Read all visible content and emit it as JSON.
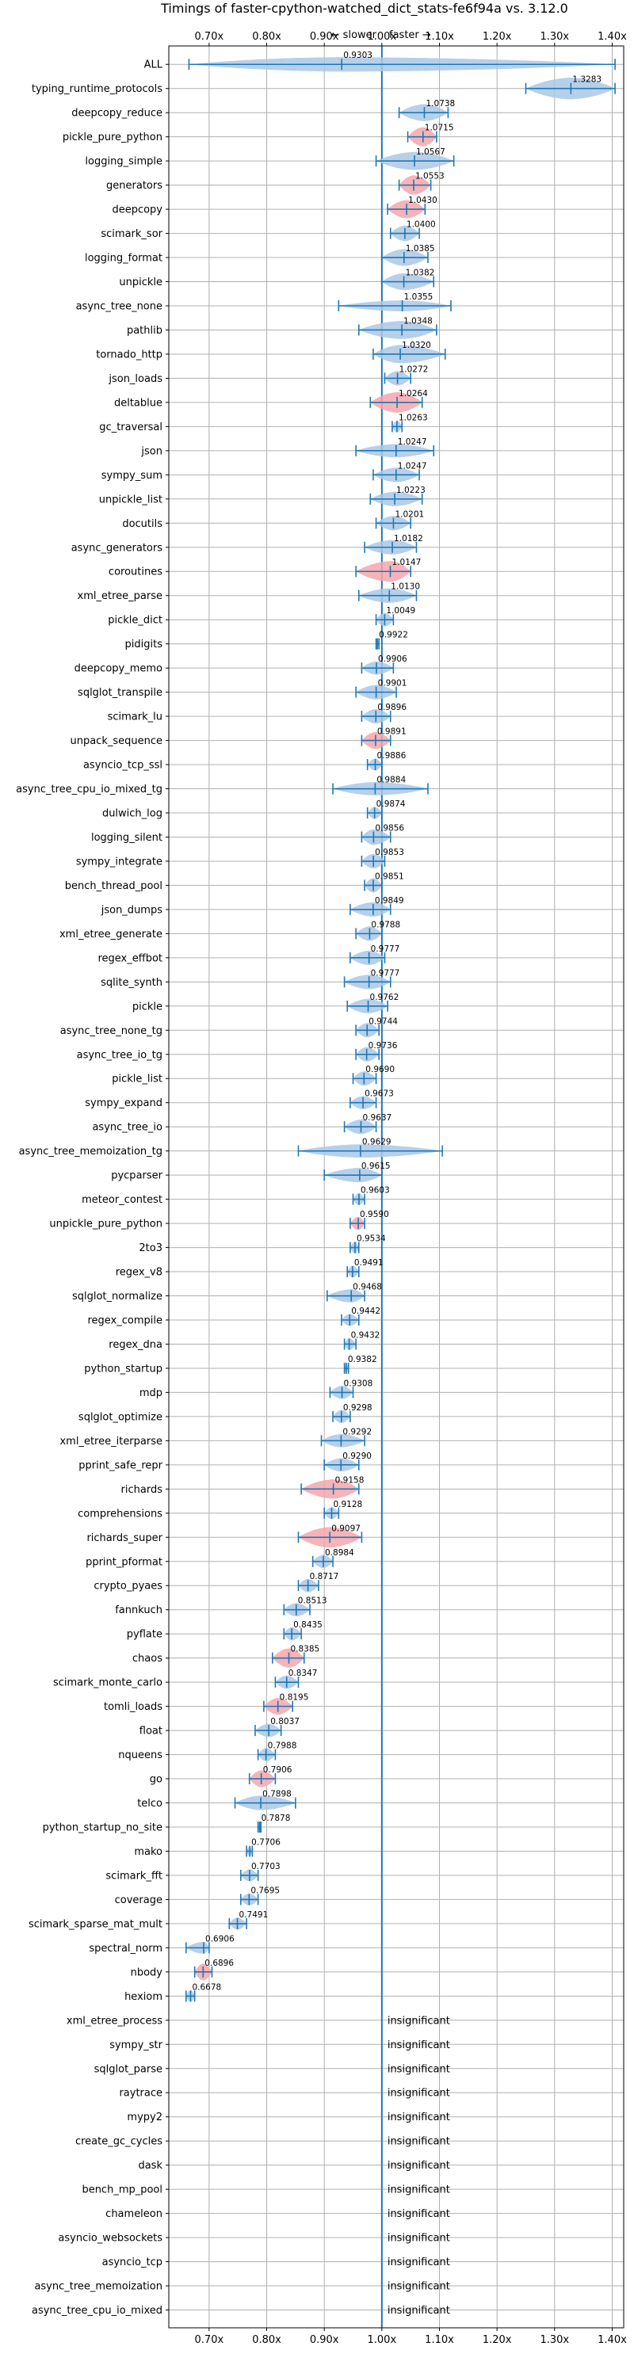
{
  "chart_data": {
    "type": "violin",
    "title": "Timings of faster-cpython-watched_dict_stats-fe6f94a vs. 3.12.0",
    "slower_label": "← slower",
    "faster_label": "faster →",
    "insignificant_label": "insignificant",
    "xlim": [
      0.63,
      1.42
    ],
    "xticks": [
      0.7,
      0.8,
      0.9,
      1.0,
      1.1,
      1.2,
      1.3,
      1.4
    ],
    "xtick_labels": [
      "0.70x",
      "0.80x",
      "0.90x",
      "1.00x",
      "1.10x",
      "1.20x",
      "1.30x",
      "1.40x"
    ],
    "reference_line": 1.0,
    "colors": {
      "normal": "#1f77b4",
      "highlight": "#f4a6ad",
      "violin": "#aac8e6"
    },
    "rows": [
      {
        "name": "ALL",
        "median": 0.9303,
        "label": "0.9303",
        "lo": 0.665,
        "hi": 1.405,
        "width": 0.6,
        "highlight": false,
        "insignificant": false
      },
      {
        "name": "typing_runtime_protocols",
        "median": 1.3283,
        "label": "1.3283",
        "lo": 1.25,
        "hi": 1.405,
        "width": 0.9,
        "highlight": false,
        "insignificant": false
      },
      {
        "name": "deepcopy_reduce",
        "median": 1.0738,
        "label": "1.0738",
        "lo": 1.03,
        "hi": 1.115,
        "width": 0.7,
        "highlight": false,
        "insignificant": false
      },
      {
        "name": "pickle_pure_python",
        "median": 1.0715,
        "label": "1.0715",
        "lo": 1.045,
        "hi": 1.095,
        "width": 0.8,
        "highlight": true,
        "insignificant": false
      },
      {
        "name": "logging_simple",
        "median": 1.0567,
        "label": "1.0567",
        "lo": 0.99,
        "hi": 1.125,
        "width": 0.75,
        "highlight": false,
        "insignificant": false
      },
      {
        "name": "generators",
        "median": 1.0553,
        "label": "1.0553",
        "lo": 1.03,
        "hi": 1.085,
        "width": 0.8,
        "highlight": true,
        "insignificant": false
      },
      {
        "name": "deepcopy",
        "median": 1.043,
        "label": "1.0430",
        "lo": 1.01,
        "hi": 1.075,
        "width": 0.75,
        "highlight": true,
        "insignificant": false
      },
      {
        "name": "scimark_sor",
        "median": 1.04,
        "label": "1.0400",
        "lo": 1.015,
        "hi": 1.065,
        "width": 0.65,
        "highlight": false,
        "insignificant": false
      },
      {
        "name": "logging_format",
        "median": 1.0385,
        "label": "1.0385",
        "lo": 1.0,
        "hi": 1.08,
        "width": 0.7,
        "highlight": false,
        "insignificant": false
      },
      {
        "name": "unpickle",
        "median": 1.0382,
        "label": "1.0382",
        "lo": 1.0,
        "hi": 1.09,
        "width": 0.7,
        "highlight": false,
        "insignificant": false
      },
      {
        "name": "async_tree_none",
        "median": 1.0355,
        "label": "1.0355",
        "lo": 0.925,
        "hi": 1.12,
        "width": 0.45,
        "highlight": false,
        "insignificant": false
      },
      {
        "name": "pathlib",
        "median": 1.0348,
        "label": "1.0348",
        "lo": 0.96,
        "hi": 1.095,
        "width": 0.75,
        "highlight": false,
        "insignificant": false
      },
      {
        "name": "tornado_http",
        "median": 1.032,
        "label": "1.0320",
        "lo": 0.985,
        "hi": 1.11,
        "width": 0.75,
        "highlight": false,
        "insignificant": false
      },
      {
        "name": "json_loads",
        "median": 1.0272,
        "label": "1.0272",
        "lo": 1.005,
        "hi": 1.05,
        "width": 0.6,
        "highlight": false,
        "insignificant": false
      },
      {
        "name": "deltablue",
        "median": 1.0264,
        "label": "1.0264",
        "lo": 0.98,
        "hi": 1.07,
        "width": 0.85,
        "highlight": true,
        "insignificant": false
      },
      {
        "name": "gc_traversal",
        "median": 1.0263,
        "label": "1.0263",
        "lo": 1.018,
        "hi": 1.035,
        "width": 0.5,
        "highlight": false,
        "insignificant": false
      },
      {
        "name": "json",
        "median": 1.0247,
        "label": "1.0247",
        "lo": 0.955,
        "hi": 1.09,
        "width": 0.55,
        "highlight": false,
        "insignificant": false
      },
      {
        "name": "sympy_sum",
        "median": 1.0247,
        "label": "1.0247",
        "lo": 0.985,
        "hi": 1.065,
        "width": 0.6,
        "highlight": false,
        "insignificant": false
      },
      {
        "name": "unpickle_list",
        "median": 1.0223,
        "label": "1.0223",
        "lo": 0.98,
        "hi": 1.07,
        "width": 0.6,
        "highlight": false,
        "insignificant": false
      },
      {
        "name": "docutils",
        "median": 1.0201,
        "label": "1.0201",
        "lo": 0.99,
        "hi": 1.05,
        "width": 0.6,
        "highlight": false,
        "insignificant": false
      },
      {
        "name": "async_generators",
        "median": 1.0182,
        "label": "1.0182",
        "lo": 0.97,
        "hi": 1.06,
        "width": 0.6,
        "highlight": false,
        "insignificant": false
      },
      {
        "name": "coroutines",
        "median": 1.0147,
        "label": "1.0147",
        "lo": 0.955,
        "hi": 1.05,
        "width": 0.85,
        "highlight": true,
        "insignificant": false
      },
      {
        "name": "xml_etree_parse",
        "median": 1.013,
        "label": "1.0130",
        "lo": 0.96,
        "hi": 1.06,
        "width": 0.6,
        "highlight": false,
        "insignificant": false
      },
      {
        "name": "pickle_dict",
        "median": 1.0049,
        "label": "1.0049",
        "lo": 0.99,
        "hi": 1.02,
        "width": 0.55,
        "highlight": false,
        "insignificant": false
      },
      {
        "name": "pidigits",
        "median": 0.9922,
        "label": "0.9922",
        "lo": 0.99,
        "hi": 0.995,
        "width": 0.3,
        "highlight": false,
        "insignificant": false
      },
      {
        "name": "deepcopy_memo",
        "median": 0.9906,
        "label": "0.9906",
        "lo": 0.965,
        "hi": 1.02,
        "width": 0.55,
        "highlight": false,
        "insignificant": false
      },
      {
        "name": "sqlglot_transpile",
        "median": 0.9901,
        "label": "0.9901",
        "lo": 0.955,
        "hi": 1.025,
        "width": 0.6,
        "highlight": false,
        "insignificant": false
      },
      {
        "name": "scimark_lu",
        "median": 0.9896,
        "label": "0.9896",
        "lo": 0.965,
        "hi": 1.015,
        "width": 0.6,
        "highlight": false,
        "insignificant": false
      },
      {
        "name": "unpack_sequence",
        "median": 0.9891,
        "label": "0.9891",
        "lo": 0.965,
        "hi": 1.015,
        "width": 0.7,
        "highlight": true,
        "insignificant": false
      },
      {
        "name": "asyncio_tcp_ssl",
        "median": 0.9886,
        "label": "0.9886",
        "lo": 0.975,
        "hi": 1.0,
        "width": 0.5,
        "highlight": false,
        "insignificant": false
      },
      {
        "name": "async_tree_cpu_io_mixed_tg",
        "median": 0.9884,
        "label": "0.9884",
        "lo": 0.915,
        "hi": 1.08,
        "width": 0.55,
        "highlight": false,
        "insignificant": false
      },
      {
        "name": "dulwich_log",
        "median": 0.9874,
        "label": "0.9874",
        "lo": 0.975,
        "hi": 1.0,
        "width": 0.5,
        "highlight": false,
        "insignificant": false
      },
      {
        "name": "logging_silent",
        "median": 0.9856,
        "label": "0.9856",
        "lo": 0.965,
        "hi": 1.015,
        "width": 0.65,
        "highlight": false,
        "insignificant": false
      },
      {
        "name": "sympy_integrate",
        "median": 0.9853,
        "label": "0.9853",
        "lo": 0.965,
        "hi": 1.005,
        "width": 0.6,
        "highlight": false,
        "insignificant": false
      },
      {
        "name": "bench_thread_pool",
        "median": 0.9851,
        "label": "0.9851",
        "lo": 0.97,
        "hi": 1.0,
        "width": 0.6,
        "highlight": false,
        "insignificant": false
      },
      {
        "name": "json_dumps",
        "median": 0.9849,
        "label": "0.9849",
        "lo": 0.945,
        "hi": 1.015,
        "width": 0.6,
        "highlight": false,
        "insignificant": false
      },
      {
        "name": "xml_etree_generate",
        "median": 0.9788,
        "label": "0.9788",
        "lo": 0.955,
        "hi": 1.0,
        "width": 0.6,
        "highlight": false,
        "insignificant": false
      },
      {
        "name": "regex_effbot",
        "median": 0.9777,
        "label": "0.9777",
        "lo": 0.945,
        "hi": 1.005,
        "width": 0.6,
        "highlight": false,
        "insignificant": false
      },
      {
        "name": "sqlite_synth",
        "median": 0.9777,
        "label": "0.9777",
        "lo": 0.935,
        "hi": 1.015,
        "width": 0.6,
        "highlight": false,
        "insignificant": false
      },
      {
        "name": "pickle",
        "median": 0.9762,
        "label": "0.9762",
        "lo": 0.94,
        "hi": 1.01,
        "width": 0.6,
        "highlight": false,
        "insignificant": false
      },
      {
        "name": "async_tree_none_tg",
        "median": 0.9744,
        "label": "0.9744",
        "lo": 0.955,
        "hi": 0.995,
        "width": 0.6,
        "highlight": false,
        "insignificant": false
      },
      {
        "name": "async_tree_io_tg",
        "median": 0.9736,
        "label": "0.9736",
        "lo": 0.955,
        "hi": 0.995,
        "width": 0.6,
        "highlight": false,
        "insignificant": false
      },
      {
        "name": "pickle_list",
        "median": 0.969,
        "label": "0.9690",
        "lo": 0.95,
        "hi": 0.99,
        "width": 0.6,
        "highlight": false,
        "insignificant": false
      },
      {
        "name": "sympy_expand",
        "median": 0.9673,
        "label": "0.9673",
        "lo": 0.945,
        "hi": 0.99,
        "width": 0.55,
        "highlight": false,
        "insignificant": false
      },
      {
        "name": "async_tree_io",
        "median": 0.9637,
        "label": "0.9637",
        "lo": 0.935,
        "hi": 0.99,
        "width": 0.6,
        "highlight": false,
        "insignificant": false
      },
      {
        "name": "async_tree_memoization_tg",
        "median": 0.9629,
        "label": "0.9629",
        "lo": 0.855,
        "hi": 1.105,
        "width": 0.55,
        "highlight": false,
        "insignificant": false
      },
      {
        "name": "pycparser",
        "median": 0.9615,
        "label": "0.9615",
        "lo": 0.9,
        "hi": 1.0,
        "width": 0.6,
        "highlight": false,
        "insignificant": false
      },
      {
        "name": "meteor_contest",
        "median": 0.9603,
        "label": "0.9603",
        "lo": 0.95,
        "hi": 0.97,
        "width": 0.5,
        "highlight": false,
        "insignificant": false
      },
      {
        "name": "unpickle_pure_python",
        "median": 0.959,
        "label": "0.9590",
        "lo": 0.945,
        "hi": 0.97,
        "width": 0.55,
        "highlight": true,
        "insignificant": false
      },
      {
        "name": "2to3",
        "median": 0.9534,
        "label": "0.9534",
        "lo": 0.945,
        "hi": 0.96,
        "width": 0.5,
        "highlight": false,
        "insignificant": false
      },
      {
        "name": "regex_v8",
        "median": 0.9491,
        "label": "0.9491",
        "lo": 0.94,
        "hi": 0.96,
        "width": 0.5,
        "highlight": false,
        "insignificant": false
      },
      {
        "name": "sqlglot_normalize",
        "median": 0.9468,
        "label": "0.9468",
        "lo": 0.905,
        "hi": 0.97,
        "width": 0.55,
        "highlight": false,
        "insignificant": false
      },
      {
        "name": "regex_compile",
        "median": 0.9442,
        "label": "0.9442",
        "lo": 0.93,
        "hi": 0.96,
        "width": 0.5,
        "highlight": false,
        "insignificant": false
      },
      {
        "name": "regex_dna",
        "median": 0.9432,
        "label": "0.9432",
        "lo": 0.935,
        "hi": 0.955,
        "width": 0.5,
        "highlight": false,
        "insignificant": false
      },
      {
        "name": "python_startup",
        "median": 0.9382,
        "label": "0.9382",
        "lo": 0.935,
        "hi": 0.942,
        "width": 0.4,
        "highlight": false,
        "insignificant": false
      },
      {
        "name": "mdp",
        "median": 0.9308,
        "label": "0.9308",
        "lo": 0.91,
        "hi": 0.95,
        "width": 0.55,
        "highlight": false,
        "insignificant": false
      },
      {
        "name": "sqlglot_optimize",
        "median": 0.9298,
        "label": "0.9298",
        "lo": 0.915,
        "hi": 0.945,
        "width": 0.55,
        "highlight": false,
        "insignificant": false
      },
      {
        "name": "xml_etree_iterparse",
        "median": 0.9292,
        "label": "0.9292",
        "lo": 0.895,
        "hi": 0.97,
        "width": 0.55,
        "highlight": false,
        "insignificant": false
      },
      {
        "name": "pprint_safe_repr",
        "median": 0.929,
        "label": "0.9290",
        "lo": 0.9,
        "hi": 0.96,
        "width": 0.55,
        "highlight": false,
        "insignificant": false
      },
      {
        "name": "richards",
        "median": 0.9158,
        "label": "0.9158",
        "lo": 0.86,
        "hi": 0.96,
        "width": 0.8,
        "highlight": true,
        "insignificant": false
      },
      {
        "name": "comprehensions",
        "median": 0.9128,
        "label": "0.9128",
        "lo": 0.9,
        "hi": 0.925,
        "width": 0.5,
        "highlight": false,
        "insignificant": false
      },
      {
        "name": "richards_super",
        "median": 0.9097,
        "label": "0.9097",
        "lo": 0.855,
        "hi": 0.965,
        "width": 0.85,
        "highlight": true,
        "insignificant": false
      },
      {
        "name": "pprint_pformat",
        "median": 0.8984,
        "label": "0.8984",
        "lo": 0.88,
        "hi": 0.915,
        "width": 0.55,
        "highlight": false,
        "insignificant": false
      },
      {
        "name": "crypto_pyaes",
        "median": 0.8717,
        "label": "0.8717",
        "lo": 0.855,
        "hi": 0.89,
        "width": 0.55,
        "highlight": false,
        "insignificant": false
      },
      {
        "name": "fannkuch",
        "median": 0.8513,
        "label": "0.8513",
        "lo": 0.83,
        "hi": 0.875,
        "width": 0.55,
        "highlight": false,
        "insignificant": false
      },
      {
        "name": "pyflate",
        "median": 0.8435,
        "label": "0.8435",
        "lo": 0.83,
        "hi": 0.86,
        "width": 0.55,
        "highlight": false,
        "insignificant": false
      },
      {
        "name": "chaos",
        "median": 0.8385,
        "label": "0.8385",
        "lo": 0.81,
        "hi": 0.865,
        "width": 0.8,
        "highlight": true,
        "insignificant": false
      },
      {
        "name": "scimark_monte_carlo",
        "median": 0.8347,
        "label": "0.8347",
        "lo": 0.815,
        "hi": 0.855,
        "width": 0.55,
        "highlight": false,
        "insignificant": false
      },
      {
        "name": "tomli_loads",
        "median": 0.8195,
        "label": "0.8195",
        "lo": 0.795,
        "hi": 0.845,
        "width": 0.7,
        "highlight": true,
        "insignificant": false
      },
      {
        "name": "float",
        "median": 0.8037,
        "label": "0.8037",
        "lo": 0.78,
        "hi": 0.825,
        "width": 0.55,
        "highlight": false,
        "insignificant": false
      },
      {
        "name": "nqueens",
        "median": 0.7988,
        "label": "0.7988",
        "lo": 0.785,
        "hi": 0.815,
        "width": 0.55,
        "highlight": false,
        "insignificant": false
      },
      {
        "name": "go",
        "median": 0.7906,
        "label": "0.7906",
        "lo": 0.77,
        "hi": 0.815,
        "width": 0.7,
        "highlight": true,
        "insignificant": false
      },
      {
        "name": "telco",
        "median": 0.7898,
        "label": "0.7898",
        "lo": 0.745,
        "hi": 0.85,
        "width": 0.6,
        "highlight": false,
        "insignificant": false
      },
      {
        "name": "python_startup_no_site",
        "median": 0.7878,
        "label": "0.7878",
        "lo": 0.785,
        "hi": 0.79,
        "width": 0.4,
        "highlight": false,
        "insignificant": false
      },
      {
        "name": "mako",
        "median": 0.7706,
        "label": "0.7706",
        "lo": 0.765,
        "hi": 0.775,
        "width": 0.4,
        "highlight": false,
        "insignificant": false
      },
      {
        "name": "scimark_fft",
        "median": 0.7703,
        "label": "0.7703",
        "lo": 0.755,
        "hi": 0.785,
        "width": 0.5,
        "highlight": false,
        "insignificant": false
      },
      {
        "name": "coverage",
        "median": 0.7695,
        "label": "0.7695",
        "lo": 0.755,
        "hi": 0.785,
        "width": 0.5,
        "highlight": false,
        "insignificant": false
      },
      {
        "name": "scimark_sparse_mat_mult",
        "median": 0.7491,
        "label": "0.7491",
        "lo": 0.735,
        "hi": 0.765,
        "width": 0.5,
        "highlight": false,
        "insignificant": false
      },
      {
        "name": "spectral_norm",
        "median": 0.6906,
        "label": "0.6906",
        "lo": 0.66,
        "hi": 0.7,
        "width": 0.5,
        "highlight": false,
        "insignificant": false
      },
      {
        "name": "nbody",
        "median": 0.6896,
        "label": "0.6896",
        "lo": 0.675,
        "hi": 0.705,
        "width": 0.7,
        "highlight": true,
        "insignificant": false
      },
      {
        "name": "hexiom",
        "median": 0.6678,
        "label": "0.6678",
        "lo": 0.66,
        "hi": 0.675,
        "width": 0.5,
        "highlight": false,
        "insignificant": false
      },
      {
        "name": "xml_etree_process",
        "insignificant": true
      },
      {
        "name": "sympy_str",
        "insignificant": true
      },
      {
        "name": "sqlglot_parse",
        "insignificant": true
      },
      {
        "name": "raytrace",
        "insignificant": true
      },
      {
        "name": "mypy2",
        "insignificant": true
      },
      {
        "name": "create_gc_cycles",
        "insignificant": true
      },
      {
        "name": "dask",
        "insignificant": true
      },
      {
        "name": "bench_mp_pool",
        "insignificant": true
      },
      {
        "name": "chameleon",
        "insignificant": true
      },
      {
        "name": "asyncio_websockets",
        "insignificant": true
      },
      {
        "name": "asyncio_tcp",
        "insignificant": true
      },
      {
        "name": "async_tree_memoization",
        "insignificant": true
      },
      {
        "name": "async_tree_cpu_io_mixed",
        "insignificant": true
      }
    ]
  }
}
